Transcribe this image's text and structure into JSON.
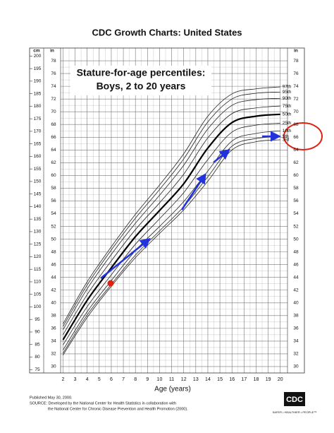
{
  "chart_data": {
    "type": "line",
    "title": "CDC Growth Charts: United States",
    "subtitle_lines": [
      "Stature-for-age percentiles:",
      "Boys, 2 to 20 years"
    ],
    "x_label": "Age (years)",
    "y_label": "in",
    "y2_label": "cm",
    "y_right_label": "in",
    "x": [
      2,
      4,
      6,
      8,
      10,
      12,
      14,
      16,
      18,
      20
    ],
    "xlim": [
      1.8,
      20.6
    ],
    "xticks": [
      2,
      3,
      4,
      5,
      6,
      7,
      8,
      9,
      10,
      11,
      12,
      13,
      14,
      15,
      16,
      17,
      18,
      19,
      20
    ],
    "ylim": [
      29,
      80
    ],
    "yticks": [
      30,
      32,
      34,
      36,
      38,
      40,
      42,
      44,
      46,
      48,
      50,
      52,
      54,
      56,
      58,
      60,
      62,
      64,
      66,
      68,
      70,
      72,
      74,
      76,
      78
    ],
    "y2lim": [
      73.66,
      203.2
    ],
    "y2ticks": [
      75,
      80,
      85,
      90,
      95,
      100,
      105,
      110,
      115,
      120,
      125,
      130,
      135,
      140,
      145,
      150,
      155,
      160,
      165,
      170,
      175,
      180,
      185,
      190,
      195,
      200
    ],
    "grid": true,
    "series": [
      {
        "name": "97th",
        "color": "#222222",
        "values": [
          36.7,
          43.3,
          48.8,
          53.9,
          58.5,
          63.4,
          69.3,
          72.8,
          73.6,
          73.9
        ]
      },
      {
        "name": "95th",
        "color": "#222222",
        "values": [
          36.3,
          42.8,
          48.3,
          53.3,
          57.8,
          62.6,
          68.4,
          72.0,
          72.9,
          73.1
        ]
      },
      {
        "name": "90th",
        "color": "#222222",
        "values": [
          35.8,
          42.2,
          47.6,
          52.5,
          56.9,
          61.6,
          67.3,
          71.0,
          71.9,
          72.1
        ]
      },
      {
        "name": "75th",
        "color": "#222222",
        "values": [
          35.0,
          41.3,
          46.6,
          51.5,
          55.7,
          60.2,
          65.9,
          69.7,
          70.6,
          70.9
        ]
      },
      {
        "name": "50th",
        "color": "#000000",
        "values": [
          34.2,
          40.4,
          45.5,
          50.4,
          54.5,
          58.7,
          64.3,
          68.3,
          69.3,
          69.6
        ]
      },
      {
        "name": "25th",
        "color": "#222222",
        "values": [
          33.4,
          39.4,
          44.4,
          49.2,
          53.2,
          57.3,
          62.5,
          66.8,
          67.9,
          68.2
        ]
      },
      {
        "name": "10th",
        "color": "#222222",
        "values": [
          32.6,
          38.6,
          43.5,
          48.2,
          52.0,
          55.9,
          60.7,
          65.4,
          66.6,
          67.0
        ]
      },
      {
        "name": "5th",
        "color": "#222222",
        "values": [
          32.1,
          38.1,
          42.9,
          47.5,
          51.3,
          55.1,
          59.8,
          64.6,
          65.8,
          66.1
        ]
      },
      {
        "name": "3rd",
        "color": "#222222",
        "values": [
          31.8,
          37.7,
          42.6,
          47.1,
          50.9,
          54.6,
          59.1,
          64.0,
          65.3,
          65.6
        ]
      }
    ],
    "footer_lines": [
      "Published May 30, 2000.",
      "SOURCE: Developed by the National Center for Health Statistics in collaboration with",
      "the National Center for Chronic Disease Prevention and Health Promotion (2000)."
    ],
    "logo_text": "CDC",
    "logo_tagline": "SAFER • HEALTHIER • PEOPLE™"
  }
}
